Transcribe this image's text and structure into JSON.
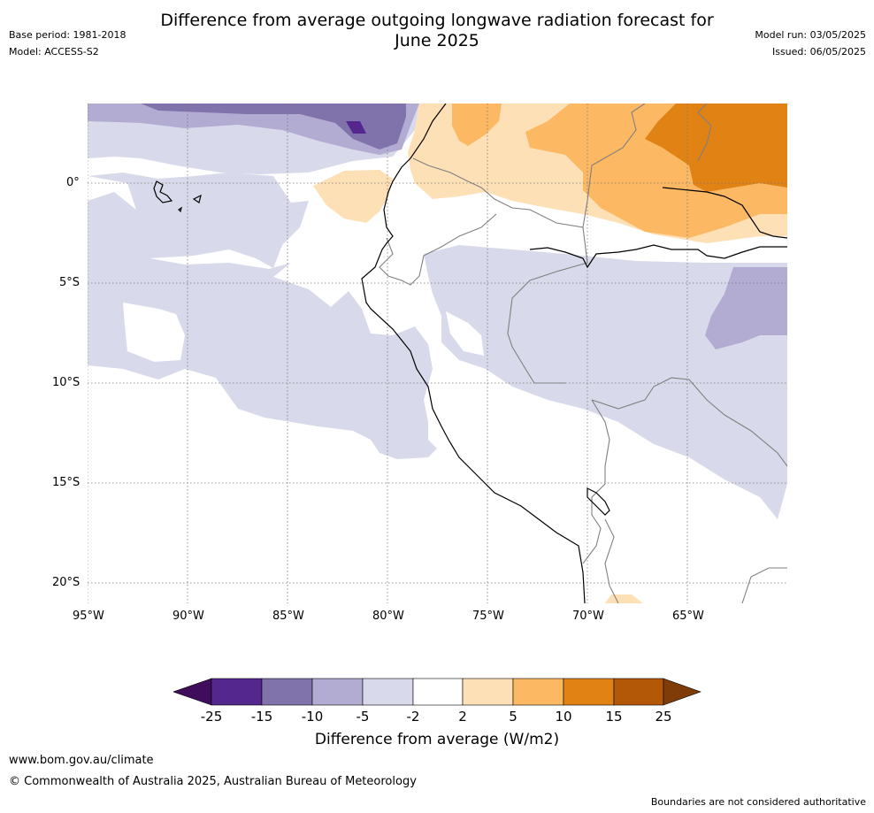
{
  "header": {
    "title_line1": "Difference from average outgoing longwave radiation forecast for",
    "title_line2": "June 2025",
    "base_period": "Base period: 1981-2018",
    "model": "Model: ACCESS-S2",
    "model_run": "Model run: 03/05/2025",
    "issued": "Issued: 06/05/2025"
  },
  "map": {
    "lon_labels": [
      "95°W",
      "90°W",
      "85°W",
      "80°W",
      "75°W",
      "70°W",
      "65°W"
    ],
    "lat_labels": [
      "0°",
      "5°S",
      "10°S",
      "15°S",
      "20°S"
    ],
    "lon_range": [
      -95,
      -60
    ],
    "lat_range": [
      -21,
      4
    ],
    "colors": {
      "purple_darkest": "#3f0d5c",
      "purple_dark": "#54278f",
      "purple_mid": "#8073ac",
      "purple_light": "#b2abd2",
      "purple_pale": "#d8daeb",
      "neutral": "#ffffff",
      "orange_pale": "#fee0b6",
      "orange_light": "#fdb863",
      "orange_mid": "#e08214",
      "orange_dark": "#b35806",
      "orange_darkest": "#7f3b08"
    }
  },
  "colorbar": {
    "levels": [
      "-25",
      "-15",
      "-10",
      "-5",
      "-2",
      "2",
      "5",
      "10",
      "15",
      "25"
    ],
    "label": "Difference from average (W/m2)"
  },
  "footer": {
    "website": "www.bom.gov.au/climate",
    "copyright": "© Commonwealth of Australia 2025, Australian Bureau of Meteorology",
    "disclaimer": "Boundaries are not considered authoritative"
  }
}
